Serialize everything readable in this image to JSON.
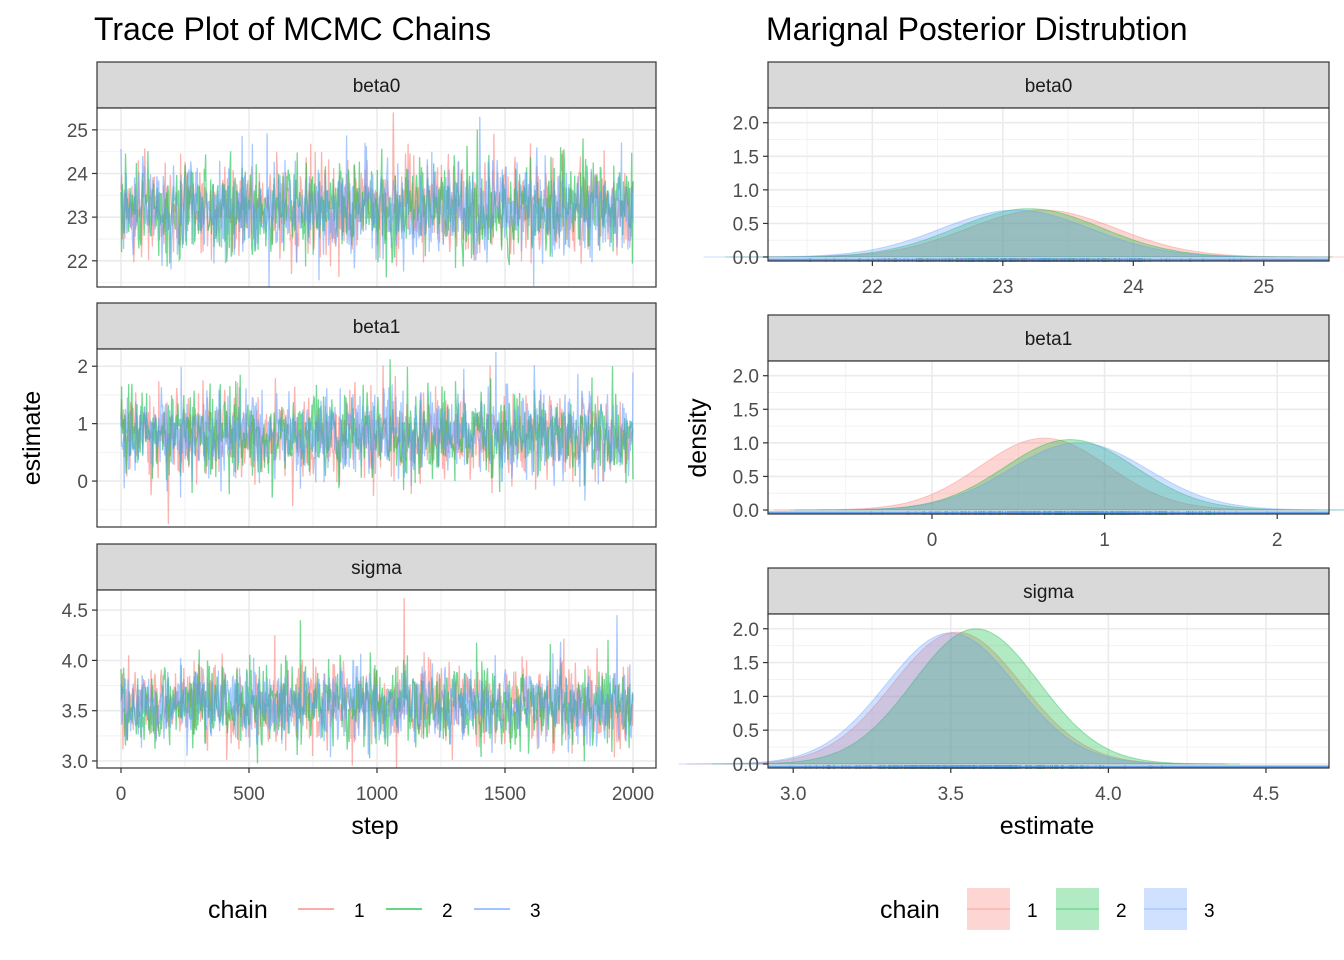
{
  "chart_data": [
    {
      "type": "line",
      "title": "Trace Plot of MCMC Chains",
      "xlabel": "step",
      "ylabel": "estimate",
      "xlim": [
        0,
        2000
      ],
      "x_ticks": [
        "0",
        "500",
        "1000",
        "1500",
        "2000"
      ],
      "grid": true,
      "legend": {
        "title": "chain",
        "position": "bottom",
        "entries": [
          "1",
          "2",
          "3"
        ]
      },
      "facets": [
        {
          "label": "beta0",
          "ylim": [
            21.4,
            25.5
          ],
          "y_ticks": [
            "22",
            "23",
            "24",
            "25"
          ],
          "series": [
            {
              "name": "1",
              "mean": 23.2,
              "sd": 0.55,
              "max": 25.4
            },
            {
              "name": "2",
              "mean": 23.2,
              "sd": 0.55,
              "max": 25.0
            },
            {
              "name": "3",
              "mean": 23.15,
              "sd": 0.55,
              "max": 25.3,
              "min": 21.3
            }
          ]
        },
        {
          "label": "beta1",
          "ylim": [
            -0.8,
            2.3
          ],
          "y_ticks": [
            "0",
            "1",
            "2"
          ],
          "series": [
            {
              "name": "1",
              "mean": 0.78,
              "sd": 0.38,
              "min": -0.75
            },
            {
              "name": "2",
              "mean": 0.8,
              "sd": 0.38,
              "max": 2.0
            },
            {
              "name": "3",
              "mean": 0.82,
              "sd": 0.38,
              "max": 2.25
            }
          ]
        },
        {
          "label": "sigma",
          "ylim": [
            2.93,
            4.7
          ],
          "y_ticks": [
            "3.0",
            "3.5",
            "4.0",
            "4.5"
          ],
          "series": [
            {
              "name": "1",
              "mean": 3.57,
              "sd": 0.2,
              "max": 4.62
            },
            {
              "name": "2",
              "mean": 3.56,
              "sd": 0.2,
              "max": 4.4
            },
            {
              "name": "3",
              "mean": 3.56,
              "sd": 0.2,
              "max": 4.45
            }
          ]
        }
      ]
    },
    {
      "type": "area",
      "title": "Marignal Posterior Distrubtion",
      "xlabel": "estimate",
      "ylabel": "density",
      "ylim": [
        0,
        2.1
      ],
      "y_ticks": [
        "0.0",
        "0.5",
        "1.0",
        "1.5",
        "2.0"
      ],
      "grid": true,
      "legend": {
        "title": "chain",
        "position": "bottom",
        "entries": [
          "1",
          "2",
          "3"
        ]
      },
      "facets": [
        {
          "label": "beta0",
          "xlim": [
            21.2,
            25.5
          ],
          "x_ticks": [
            "22",
            "23",
            "24",
            "25"
          ],
          "series": [
            {
              "name": "1",
              "peak_x": 23.3,
              "peak_density": 0.7
            },
            {
              "name": "2",
              "peak_x": 23.2,
              "peak_density": 0.72
            },
            {
              "name": "3",
              "peak_x": 23.1,
              "peak_density": 0.7
            }
          ]
        },
        {
          "label": "beta1",
          "xlim": [
            -0.95,
            2.3
          ],
          "x_ticks": [
            "0",
            "1",
            "2"
          ],
          "series": [
            {
              "name": "1",
              "peak_x": 0.65,
              "peak_density": 1.07
            },
            {
              "name": "2",
              "peak_x": 0.8,
              "peak_density": 1.05
            },
            {
              "name": "3",
              "peak_x": 0.85,
              "peak_density": 1.0
            }
          ]
        },
        {
          "label": "sigma",
          "xlim": [
            2.92,
            4.7
          ],
          "x_ticks": [
            "3.0",
            "3.5",
            "4.0",
            "4.5"
          ],
          "series": [
            {
              "name": "1",
              "peak_x": 3.52,
              "peak_density": 1.95
            },
            {
              "name": "2",
              "peak_x": 3.58,
              "peak_density": 2.0
            },
            {
              "name": "3",
              "peak_x": 3.5,
              "peak_density": 1.94
            }
          ]
        }
      ]
    }
  ],
  "colors": {
    "chain1": "#F8766D",
    "chain2": "#00BA38",
    "chain3": "#619CFF"
  }
}
